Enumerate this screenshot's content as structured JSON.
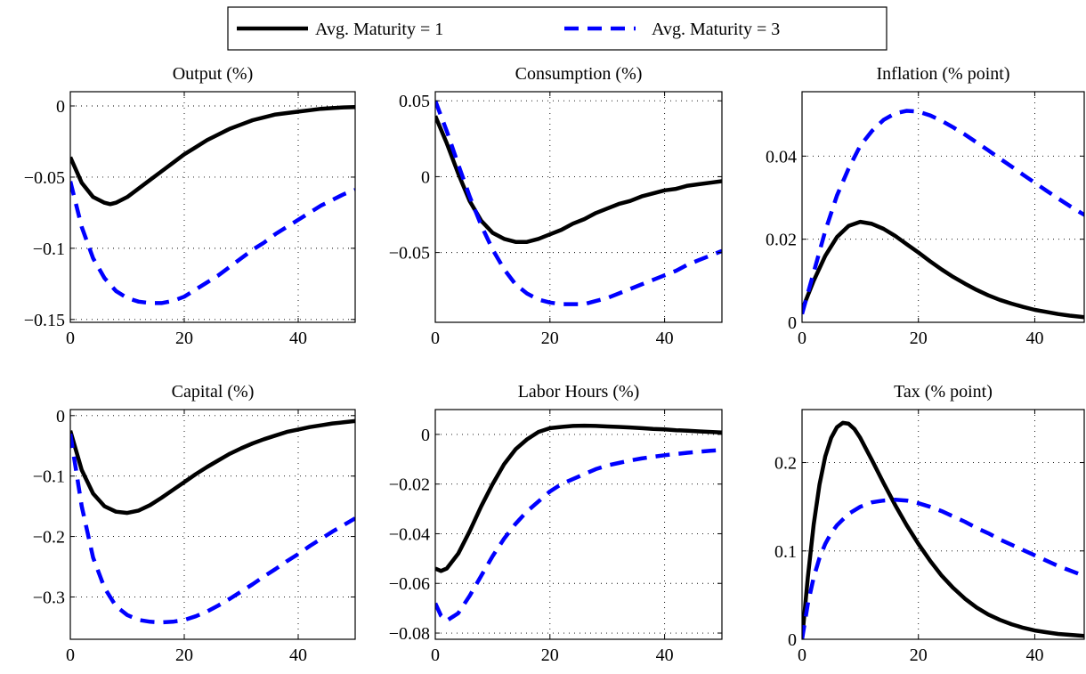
{
  "legend": {
    "placement": "top-center",
    "entries": [
      {
        "label": "Avg. Maturity = 1",
        "color": "#000000",
        "style": "solid"
      },
      {
        "label": "Avg. Maturity = 3",
        "color": "#0000ff",
        "style": "dashed"
      }
    ]
  },
  "chart_data": [
    {
      "type": "line",
      "title": "Output (%)",
      "grid": true,
      "xlim": [
        0,
        50
      ],
      "ylim": [
        -0.152,
        0.01
      ],
      "xticks": [
        0,
        20,
        40
      ],
      "xtick_labels": [
        "0",
        "20",
        "40"
      ],
      "yticks": [
        0,
        -0.05,
        -0.1,
        -0.15
      ],
      "ytick_labels": [
        "0",
        "−0.05",
        "−0.1",
        "−0.15"
      ],
      "series": [
        {
          "name": "Avg. Maturity = 1",
          "x": [
            0,
            2,
            4,
            6,
            7,
            8,
            10,
            12,
            14,
            16,
            18,
            20,
            22,
            24,
            26,
            28,
            30,
            32,
            34,
            36,
            38,
            40,
            42,
            44,
            46,
            48,
            50
          ],
          "y": [
            -0.036,
            -0.054,
            -0.064,
            -0.068,
            -0.069,
            -0.068,
            -0.064,
            -0.058,
            -0.052,
            -0.046,
            -0.04,
            -0.034,
            -0.029,
            -0.024,
            -0.02,
            -0.016,
            -0.013,
            -0.01,
            -0.008,
            -0.006,
            -0.005,
            -0.004,
            -0.003,
            -0.002,
            -0.0015,
            -0.001,
            -0.0008
          ]
        },
        {
          "name": "Avg. Maturity = 3",
          "x": [
            0,
            2,
            4,
            6,
            8,
            10,
            12,
            14,
            16,
            18,
            20,
            22,
            24,
            26,
            28,
            30,
            32,
            34,
            36,
            38,
            40,
            42,
            44,
            46,
            48,
            50
          ],
          "y": [
            -0.053,
            -0.085,
            -0.107,
            -0.121,
            -0.13,
            -0.135,
            -0.1375,
            -0.1385,
            -0.1385,
            -0.137,
            -0.134,
            -0.129,
            -0.124,
            -0.119,
            -0.113,
            -0.107,
            -0.101,
            -0.096,
            -0.09,
            -0.085,
            -0.08,
            -0.075,
            -0.07,
            -0.066,
            -0.062,
            -0.059
          ]
        }
      ]
    },
    {
      "type": "line",
      "title": "Consumption (%)",
      "grid": true,
      "xlim": [
        0,
        50
      ],
      "ylim": [
        -0.096,
        0.056
      ],
      "xticks": [
        0,
        20,
        40
      ],
      "xtick_labels": [
        "0",
        "20",
        "40"
      ],
      "yticks": [
        0.05,
        0,
        -0.05
      ],
      "ytick_labels": [
        "0.05",
        "0",
        "−0.05"
      ],
      "series": [
        {
          "name": "Avg. Maturity = 1",
          "x": [
            0,
            2,
            4,
            6,
            8,
            10,
            12,
            14,
            16,
            18,
            20,
            22,
            24,
            26,
            28,
            30,
            32,
            34,
            36,
            38,
            40,
            42,
            44,
            46,
            48,
            50
          ],
          "y": [
            0.04,
            0.022,
            0.002,
            -0.016,
            -0.029,
            -0.037,
            -0.041,
            -0.043,
            -0.043,
            -0.041,
            -0.038,
            -0.035,
            -0.031,
            -0.028,
            -0.024,
            -0.021,
            -0.018,
            -0.016,
            -0.013,
            -0.011,
            -0.009,
            -0.008,
            -0.006,
            -0.005,
            -0.004,
            -0.003
          ]
        },
        {
          "name": "Avg. Maturity = 3",
          "x": [
            0,
            2,
            4,
            6,
            8,
            10,
            12,
            14,
            16,
            18,
            20,
            22,
            24,
            26,
            28,
            30,
            32,
            34,
            36,
            38,
            40,
            42,
            44,
            46,
            48,
            50
          ],
          "y": [
            0.05,
            0.03,
            0.008,
            -0.013,
            -0.032,
            -0.048,
            -0.061,
            -0.071,
            -0.077,
            -0.081,
            -0.083,
            -0.084,
            -0.084,
            -0.084,
            -0.082,
            -0.08,
            -0.077,
            -0.074,
            -0.071,
            -0.068,
            -0.065,
            -0.062,
            -0.058,
            -0.055,
            -0.052,
            -0.049
          ]
        }
      ]
    },
    {
      "type": "line",
      "title": "Inflation (% point)",
      "grid": true,
      "xlim": [
        0,
        48.5
      ],
      "ylim": [
        0,
        0.0555
      ],
      "xticks": [
        0,
        20,
        40
      ],
      "xtick_labels": [
        "0",
        "20",
        "40"
      ],
      "yticks": [
        0,
        0.02,
        0.04
      ],
      "ytick_labels": [
        "0",
        "0.02",
        "0.04"
      ],
      "series": [
        {
          "name": "Avg. Maturity = 1",
          "x": [
            0,
            2,
            4,
            6,
            8,
            10,
            12,
            14,
            16,
            18,
            20,
            22,
            24,
            26,
            28,
            30,
            32,
            34,
            36,
            38,
            40,
            42,
            44,
            46,
            48,
            50
          ],
          "y": [
            0.003,
            0.01,
            0.016,
            0.0205,
            0.0232,
            0.0242,
            0.0237,
            0.0225,
            0.0208,
            0.0188,
            0.0168,
            0.0147,
            0.0127,
            0.0109,
            0.0093,
            0.0078,
            0.0065,
            0.0054,
            0.0045,
            0.0037,
            0.003,
            0.0025,
            0.002,
            0.0016,
            0.0013,
            0.001
          ]
        },
        {
          "name": "Avg. Maturity = 3",
          "x": [
            0,
            2,
            4,
            6,
            8,
            10,
            12,
            14,
            16,
            18,
            20,
            22,
            24,
            26,
            28,
            30,
            32,
            34,
            36,
            38,
            40,
            42,
            44,
            46,
            48,
            50
          ],
          "y": [
            0.002,
            0.012,
            0.022,
            0.0305,
            0.037,
            0.0425,
            0.046,
            0.0487,
            0.0503,
            0.0509,
            0.0507,
            0.0498,
            0.0485,
            0.0469,
            0.0452,
            0.0433,
            0.0414,
            0.0394,
            0.0375,
            0.0355,
            0.0336,
            0.0317,
            0.0298,
            0.028,
            0.0263,
            0.0247
          ]
        }
      ]
    },
    {
      "type": "line",
      "title": "Capital (%)",
      "grid": true,
      "xlim": [
        0,
        50
      ],
      "ylim": [
        -0.37,
        0.01
      ],
      "xticks": [
        0,
        20,
        40
      ],
      "xtick_labels": [
        "0",
        "20",
        "40"
      ],
      "yticks": [
        0,
        -0.1,
        -0.2,
        -0.3
      ],
      "ytick_labels": [
        "0",
        "−0.1",
        "−0.2",
        "−0.3"
      ],
      "series": [
        {
          "name": "Avg. Maturity = 1",
          "x": [
            0,
            2,
            4,
            6,
            8,
            10,
            12,
            14,
            16,
            18,
            20,
            22,
            24,
            26,
            28,
            30,
            32,
            34,
            36,
            38,
            40,
            42,
            44,
            46,
            48,
            50
          ],
          "y": [
            -0.025,
            -0.09,
            -0.129,
            -0.15,
            -0.159,
            -0.161,
            -0.157,
            -0.148,
            -0.136,
            -0.123,
            -0.11,
            -0.097,
            -0.085,
            -0.074,
            -0.063,
            -0.054,
            -0.046,
            -0.039,
            -0.033,
            -0.027,
            -0.023,
            -0.019,
            -0.016,
            -0.013,
            -0.011,
            -0.009
          ]
        },
        {
          "name": "Avg. Maturity = 3",
          "x": [
            0,
            2,
            4,
            6,
            8,
            10,
            12,
            14,
            16,
            18,
            20,
            22,
            24,
            26,
            28,
            30,
            32,
            34,
            36,
            38,
            40,
            42,
            44,
            46,
            48,
            50
          ],
          "y": [
            -0.03,
            -0.15,
            -0.235,
            -0.285,
            -0.315,
            -0.33,
            -0.338,
            -0.341,
            -0.342,
            -0.341,
            -0.338,
            -0.332,
            -0.324,
            -0.314,
            -0.303,
            -0.291,
            -0.279,
            -0.266,
            -0.254,
            -0.241,
            -0.229,
            -0.216,
            -0.204,
            -0.192,
            -0.181,
            -0.17
          ]
        }
      ]
    },
    {
      "type": "line",
      "title": "Labor Hours (%)",
      "grid": true,
      "xlim": [
        0,
        50
      ],
      "ylim": [
        -0.0825,
        0.01
      ],
      "xticks": [
        0,
        20,
        40
      ],
      "xtick_labels": [
        "0",
        "20",
        "40"
      ],
      "yticks": [
        0,
        -0.02,
        -0.04,
        -0.06,
        -0.08
      ],
      "ytick_labels": [
        "0",
        "−0.02",
        "−0.04",
        "−0.06",
        "−0.08"
      ],
      "series": [
        {
          "name": "Avg. Maturity = 1",
          "x": [
            0,
            1,
            2,
            4,
            6,
            8,
            10,
            12,
            14,
            16,
            18,
            20,
            22,
            24,
            26,
            28,
            30,
            32,
            34,
            36,
            38,
            40,
            42,
            44,
            46,
            48,
            50
          ],
          "y": [
            -0.054,
            -0.055,
            -0.054,
            -0.048,
            -0.039,
            -0.029,
            -0.02,
            -0.012,
            -0.006,
            -0.002,
            0.001,
            0.0025,
            0.003,
            0.0034,
            0.0035,
            0.0034,
            0.0032,
            0.003,
            0.0028,
            0.0025,
            0.0022,
            0.002,
            0.0017,
            0.0015,
            0.0012,
            0.001,
            0.0008
          ]
        },
        {
          "name": "Avg. Maturity = 3",
          "x": [
            0,
            1,
            2,
            4,
            6,
            8,
            10,
            12,
            14,
            16,
            18,
            20,
            22,
            24,
            26,
            28,
            30,
            32,
            34,
            36,
            38,
            40,
            42,
            44,
            46,
            48,
            50
          ],
          "y": [
            -0.068,
            -0.073,
            -0.075,
            -0.072,
            -0.065,
            -0.057,
            -0.049,
            -0.042,
            -0.036,
            -0.031,
            -0.027,
            -0.023,
            -0.02,
            -0.018,
            -0.016,
            -0.014,
            -0.0125,
            -0.0115,
            -0.0105,
            -0.0097,
            -0.009,
            -0.0084,
            -0.0079,
            -0.0074,
            -0.007,
            -0.0066,
            -0.0063
          ]
        }
      ]
    },
    {
      "type": "line",
      "title": "Tax (% point)",
      "grid": true,
      "xlim": [
        0,
        48.5
      ],
      "ylim": [
        0,
        0.26
      ],
      "xticks": [
        0,
        20,
        40
      ],
      "xtick_labels": [
        "0",
        "20",
        "40"
      ],
      "yticks": [
        0,
        0.1,
        0.2
      ],
      "ytick_labels": [
        "0",
        "0.1",
        "0.2"
      ],
      "series": [
        {
          "name": "Avg. Maturity = 1",
          "x": [
            0,
            1,
            2,
            3,
            4,
            5,
            6,
            7,
            8,
            9,
            10,
            12,
            14,
            16,
            18,
            20,
            22,
            24,
            26,
            28,
            30,
            32,
            34,
            36,
            38,
            40,
            42,
            44,
            46,
            48,
            50
          ],
          "y": [
            0.0,
            0.07,
            0.13,
            0.175,
            0.207,
            0.228,
            0.24,
            0.245,
            0.244,
            0.238,
            0.228,
            0.203,
            0.177,
            0.152,
            0.129,
            0.108,
            0.089,
            0.072,
            0.058,
            0.046,
            0.036,
            0.028,
            0.022,
            0.017,
            0.013,
            0.01,
            0.008,
            0.006,
            0.005,
            0.004,
            0.003
          ]
        },
        {
          "name": "Avg. Maturity = 3",
          "x": [
            0,
            1,
            2,
            3,
            4,
            5,
            6,
            8,
            10,
            12,
            14,
            16,
            18,
            20,
            22,
            24,
            26,
            28,
            30,
            32,
            34,
            36,
            38,
            40,
            42,
            44,
            46,
            48,
            50
          ],
          "y": [
            0.0,
            0.04,
            0.07,
            0.092,
            0.108,
            0.12,
            0.129,
            0.142,
            0.15,
            0.155,
            0.157,
            0.158,
            0.157,
            0.154,
            0.15,
            0.145,
            0.139,
            0.133,
            0.126,
            0.12,
            0.113,
            0.107,
            0.101,
            0.095,
            0.089,
            0.083,
            0.078,
            0.073,
            0.068
          ]
        }
      ]
    }
  ]
}
